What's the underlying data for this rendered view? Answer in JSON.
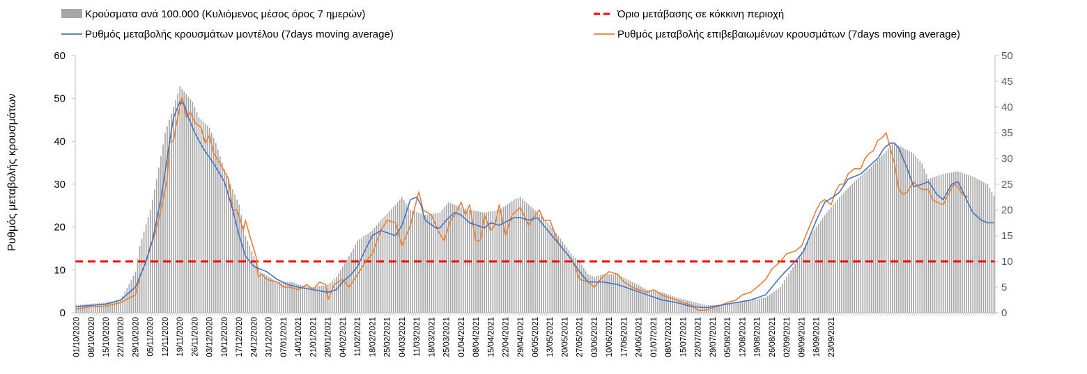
{
  "chart_data": {
    "type": "bar+line",
    "title": "",
    "ylabel": "Ρυθμός μεταβολής κρουσμάτων",
    "y_left_range": [
      0,
      60
    ],
    "y_left_ticks": [
      "0",
      "10",
      "20",
      "30",
      "40",
      "50",
      "60"
    ],
    "y_right_range": [
      0,
      50
    ],
    "y_right_ticks": [
      "0",
      "5",
      "10",
      "15",
      "20",
      "25",
      "30",
      "35",
      "40",
      "45",
      "50"
    ],
    "x_tick_labels": [
      "01/10/2020",
      "08/10/2020",
      "15/10/2020",
      "22/10/2020",
      "29/10/2020",
      "05/11/2020",
      "12/11/2020",
      "19/11/2020",
      "26/11/2020",
      "03/12/2020",
      "10/12/2020",
      "17/12/2020",
      "24/12/2020",
      "31/12/2020",
      "07/01/2021",
      "14/01/2021",
      "21/01/2021",
      "28/01/2021",
      "04/02/2021",
      "11/02/2021",
      "18/02/2021",
      "25/02/2021",
      "04/03/2021",
      "11/03/2021",
      "18/03/2021",
      "25/03/2021",
      "01/04/2021",
      "08/04/2021",
      "15/04/2021",
      "22/04/2021",
      "29/04/2021",
      "06/05/2021",
      "13/05/2021",
      "20/05/2021",
      "27/05/2021",
      "03/06/2021",
      "10/06/2021",
      "17/06/2021",
      "24/06/2021",
      "01/07/2021",
      "08/07/2021",
      "15/07/2021",
      "22/07/2021",
      "29/07/2021",
      "05/08/2021",
      "12/08/2021",
      "19/08/2021",
      "26/08/2021",
      "02/09/2021",
      "09/09/2021",
      "16/09/2021",
      "23/09/2021"
    ],
    "legend": [
      {
        "key": "bars",
        "label": "Κρούσματα ανά 100.000 (Κυλιόμενος μέσος όρος 7 ημερών)",
        "color": "#a6a6a6"
      },
      {
        "key": "threshold",
        "label": "Όριο μετάβασης σε κόκκινη περιοχή",
        "color": "#ff0000"
      },
      {
        "key": "model",
        "label": "Ρυθμός μεταβολής κρουσμάτων μοντέλου (7days moving average)",
        "color": "#4472c4"
      },
      {
        "key": "confirmed",
        "label": "Ρυθμός μεταβολής επιβεβαιωμένων κρουσμάτων (7days moving average)",
        "color": "#ed7d31"
      }
    ],
    "threshold_value_right_axis": 10,
    "bars_right_axis_keypoints": [
      [
        0,
        1.5
      ],
      [
        14,
        2
      ],
      [
        21,
        2.5
      ],
      [
        28,
        8
      ],
      [
        30,
        13
      ],
      [
        35,
        20
      ],
      [
        38,
        26
      ],
      [
        42,
        35
      ],
      [
        46,
        40
      ],
      [
        49,
        44
      ],
      [
        51,
        43
      ],
      [
        55,
        41
      ],
      [
        58,
        38
      ],
      [
        63,
        36
      ],
      [
        66,
        33
      ],
      [
        70,
        28
      ],
      [
        73,
        25
      ],
      [
        77,
        21
      ],
      [
        80,
        15
      ],
      [
        84,
        11
      ],
      [
        87,
        8
      ],
      [
        91,
        7
      ],
      [
        95,
        6
      ],
      [
        102,
        6
      ],
      [
        105,
        5.5
      ],
      [
        112,
        5
      ],
      [
        119,
        5.5
      ],
      [
        123,
        7
      ],
      [
        126,
        9
      ],
      [
        129,
        11
      ],
      [
        133,
        14
      ],
      [
        140,
        16
      ],
      [
        144,
        18
      ],
      [
        151,
        21
      ],
      [
        154,
        22.5
      ],
      [
        158,
        20
      ],
      [
        165,
        19
      ],
      [
        172,
        19.5
      ],
      [
        176,
        21.5
      ],
      [
        179,
        21
      ],
      [
        186,
        20
      ],
      [
        193,
        19.5
      ],
      [
        200,
        20
      ],
      [
        207,
        22
      ],
      [
        210,
        22.5
      ],
      [
        214,
        21
      ],
      [
        221,
        18.5
      ],
      [
        228,
        15
      ],
      [
        235,
        11
      ],
      [
        238,
        10
      ],
      [
        242,
        7.5
      ],
      [
        245,
        7
      ],
      [
        249,
        7.5
      ],
      [
        256,
        7.5
      ],
      [
        263,
        6
      ],
      [
        270,
        4.5
      ],
      [
        277,
        4
      ],
      [
        284,
        3
      ],
      [
        291,
        2.2
      ],
      [
        298,
        1.5
      ],
      [
        305,
        1.5
      ],
      [
        312,
        2
      ],
      [
        319,
        2.5
      ],
      [
        326,
        3
      ],
      [
        333,
        5
      ],
      [
        336,
        7
      ],
      [
        340,
        9.5
      ],
      [
        347,
        15
      ],
      [
        354,
        19
      ],
      [
        361,
        22.5
      ],
      [
        368,
        25.5
      ],
      [
        375,
        28
      ],
      [
        382,
        31
      ],
      [
        386,
        33
      ],
      [
        389,
        32.5
      ],
      [
        396,
        31
      ],
      [
        400,
        29
      ],
      [
        403,
        26
      ],
      [
        410,
        27
      ],
      [
        417,
        27.5
      ],
      [
        424,
        26.5
      ],
      [
        431,
        25
      ],
      [
        435,
        22
      ],
      [
        438,
        20.5
      ]
    ],
    "model_right_axis_keypoints": [
      [
        0,
        1.2
      ],
      [
        14,
        1.7
      ],
      [
        21,
        2.5
      ],
      [
        28,
        5
      ],
      [
        33,
        10
      ],
      [
        36,
        14
      ],
      [
        40,
        22
      ],
      [
        44,
        33
      ],
      [
        46,
        38
      ],
      [
        48,
        40
      ],
      [
        49,
        41
      ],
      [
        51,
        40.5
      ],
      [
        53,
        38
      ],
      [
        56,
        35
      ],
      [
        60,
        32
      ],
      [
        65,
        29
      ],
      [
        70,
        25.5
      ],
      [
        74,
        20
      ],
      [
        77,
        15
      ],
      [
        80,
        11
      ],
      [
        84,
        9
      ],
      [
        90,
        8
      ],
      [
        95,
        6.5
      ],
      [
        100,
        5.5
      ],
      [
        105,
        5
      ],
      [
        112,
        4.5
      ],
      [
        119,
        4
      ],
      [
        123,
        4.5
      ],
      [
        126,
        6
      ],
      [
        130,
        7.5
      ],
      [
        133,
        9
      ],
      [
        137,
        12.5
      ],
      [
        140,
        15
      ],
      [
        144,
        16
      ],
      [
        151,
        15
      ],
      [
        154,
        17
      ],
      [
        158,
        22
      ],
      [
        161,
        22.5
      ],
      [
        163,
        21
      ],
      [
        165,
        18
      ],
      [
        170,
        16.5
      ],
      [
        172,
        16.5
      ],
      [
        175,
        18
      ],
      [
        179,
        19.5
      ],
      [
        182,
        19
      ],
      [
        186,
        17.5
      ],
      [
        193,
        16.5
      ],
      [
        196,
        17.5
      ],
      [
        200,
        17
      ],
      [
        207,
        18.5
      ],
      [
        210,
        18.5
      ],
      [
        214,
        18
      ],
      [
        218,
        18.5
      ],
      [
        221,
        17
      ],
      [
        226,
        14.5
      ],
      [
        229,
        13
      ],
      [
        233,
        11
      ],
      [
        238,
        8
      ],
      [
        242,
        6
      ],
      [
        245,
        6
      ],
      [
        249,
        6
      ],
      [
        256,
        5.5
      ],
      [
        263,
        4.5
      ],
      [
        270,
        3.5
      ],
      [
        277,
        2.5
      ],
      [
        284,
        2
      ],
      [
        291,
        1.2
      ],
      [
        298,
        1
      ],
      [
        305,
        1.5
      ],
      [
        312,
        2
      ],
      [
        319,
        2.5
      ],
      [
        326,
        3.5
      ],
      [
        333,
        7
      ],
      [
        340,
        10
      ],
      [
        344,
        12
      ],
      [
        347,
        15
      ],
      [
        350,
        18
      ],
      [
        354,
        21.5
      ],
      [
        358,
        22.5
      ],
      [
        361,
        23.5
      ],
      [
        365,
        26
      ],
      [
        368,
        26.5
      ],
      [
        371,
        27
      ],
      [
        375,
        28.5
      ],
      [
        379,
        30
      ],
      [
        382,
        32
      ],
      [
        385,
        33
      ],
      [
        387,
        33
      ],
      [
        389,
        32
      ],
      [
        393,
        28
      ],
      [
        396,
        24.5
      ],
      [
        400,
        25
      ],
      [
        403,
        25.5
      ],
      [
        407,
        23
      ],
      [
        410,
        22
      ],
      [
        414,
        25
      ],
      [
        417,
        25.5
      ],
      [
        421,
        22
      ],
      [
        424,
        19.5
      ],
      [
        428,
        18
      ],
      [
        431,
        17.5
      ],
      [
        434,
        17.5
      ]
    ],
    "confirmed_right_axis_keypoints": [
      [
        0,
        0.7
      ],
      [
        7,
        1.2
      ],
      [
        14,
        1.3
      ],
      [
        21,
        2
      ],
      [
        28,
        3.5
      ],
      [
        30,
        7
      ],
      [
        33,
        10
      ],
      [
        35,
        13
      ],
      [
        37,
        15
      ],
      [
        39,
        18
      ],
      [
        41,
        22
      ],
      [
        43,
        26
      ],
      [
        44,
        33
      ],
      [
        46,
        33.5
      ],
      [
        47,
        36
      ],
      [
        49,
        40
      ],
      [
        50,
        42
      ],
      [
        52,
        38
      ],
      [
        54,
        39
      ],
      [
        56,
        37
      ],
      [
        59,
        36
      ],
      [
        61,
        33
      ],
      [
        63,
        34.5
      ],
      [
        65,
        31
      ],
      [
        68,
        29
      ],
      [
        72,
        26
      ],
      [
        74,
        20
      ],
      [
        76,
        20
      ],
      [
        79,
        16
      ],
      [
        80,
        18
      ],
      [
        82,
        15
      ],
      [
        85,
        11
      ],
      [
        86,
        7
      ],
      [
        88,
        7.5
      ],
      [
        90,
        6.5
      ],
      [
        95,
        6
      ],
      [
        98,
        5
      ],
      [
        101,
        5
      ],
      [
        105,
        4.5
      ],
      [
        109,
        5.5
      ],
      [
        112,
        4.5
      ],
      [
        115,
        6
      ],
      [
        118,
        5.5
      ],
      [
        119,
        2.5
      ],
      [
        122,
        5.5
      ],
      [
        126,
        6.5
      ],
      [
        129,
        5
      ],
      [
        133,
        7.5
      ],
      [
        137,
        10
      ],
      [
        140,
        11.5
      ],
      [
        144,
        16
      ],
      [
        147,
        18
      ],
      [
        151,
        17.5
      ],
      [
        154,
        13
      ],
      [
        158,
        17
      ],
      [
        161,
        22
      ],
      [
        162,
        23.5
      ],
      [
        164,
        20
      ],
      [
        168,
        19
      ],
      [
        171,
        16
      ],
      [
        174,
        14
      ],
      [
        177,
        18
      ],
      [
        179,
        19
      ],
      [
        182,
        21.5
      ],
      [
        184,
        19
      ],
      [
        186,
        21
      ],
      [
        189,
        14
      ],
      [
        191,
        14
      ],
      [
        193,
        19
      ],
      [
        196,
        16
      ],
      [
        198,
        17
      ],
      [
        200,
        21
      ],
      [
        203,
        15
      ],
      [
        206,
        19
      ],
      [
        210,
        20.5
      ],
      [
        214,
        17
      ],
      [
        217,
        19
      ],
      [
        219,
        20
      ],
      [
        221,
        18
      ],
      [
        224,
        18
      ],
      [
        228,
        13.5
      ],
      [
        231,
        12
      ],
      [
        235,
        10
      ],
      [
        238,
        6.5
      ],
      [
        242,
        6
      ],
      [
        245,
        5
      ],
      [
        249,
        7
      ],
      [
        252,
        8
      ],
      [
        256,
        7.5
      ],
      [
        259,
        6
      ],
      [
        263,
        5
      ],
      [
        266,
        4.5
      ],
      [
        270,
        4
      ],
      [
        273,
        4.5
      ],
      [
        277,
        3.5
      ],
      [
        280,
        3
      ],
      [
        284,
        2.5
      ],
      [
        287,
        2
      ],
      [
        291,
        1.5
      ],
      [
        294,
        0.5
      ],
      [
        298,
        0.5
      ],
      [
        301,
        1
      ],
      [
        305,
        1.5
      ],
      [
        308,
        2
      ],
      [
        312,
        2.5
      ],
      [
        315,
        3.5
      ],
      [
        319,
        4
      ],
      [
        322,
        5
      ],
      [
        326,
        6.5
      ],
      [
        329,
        8.5
      ],
      [
        333,
        10
      ],
      [
        336,
        11.5
      ],
      [
        340,
        12
      ],
      [
        343,
        13
      ],
      [
        347,
        17
      ],
      [
        350,
        20
      ],
      [
        352,
        21.5
      ],
      [
        354,
        22
      ],
      [
        357,
        21
      ],
      [
        359,
        23.5
      ],
      [
        361,
        25
      ],
      [
        363,
        25
      ],
      [
        365,
        27
      ],
      [
        368,
        28
      ],
      [
        371,
        28
      ],
      [
        373,
        30
      ],
      [
        375,
        31
      ],
      [
        377,
        31.5
      ],
      [
        379,
        33.5
      ],
      [
        381,
        34
      ],
      [
        383,
        35
      ],
      [
        385,
        32
      ],
      [
        387,
        29
      ],
      [
        389,
        24
      ],
      [
        391,
        23
      ],
      [
        393,
        23.5
      ],
      [
        396,
        25.5
      ],
      [
        398,
        24.5
      ],
      [
        400,
        24
      ],
      [
        403,
        24
      ],
      [
        405,
        22
      ],
      [
        407,
        21.5
      ],
      [
        410,
        21
      ],
      [
        413,
        23.5
      ],
      [
        415,
        25
      ],
      [
        417,
        24.5
      ],
      [
        419,
        23
      ],
      [
        422,
        22.5
      ]
    ],
    "total_days": 435
  }
}
